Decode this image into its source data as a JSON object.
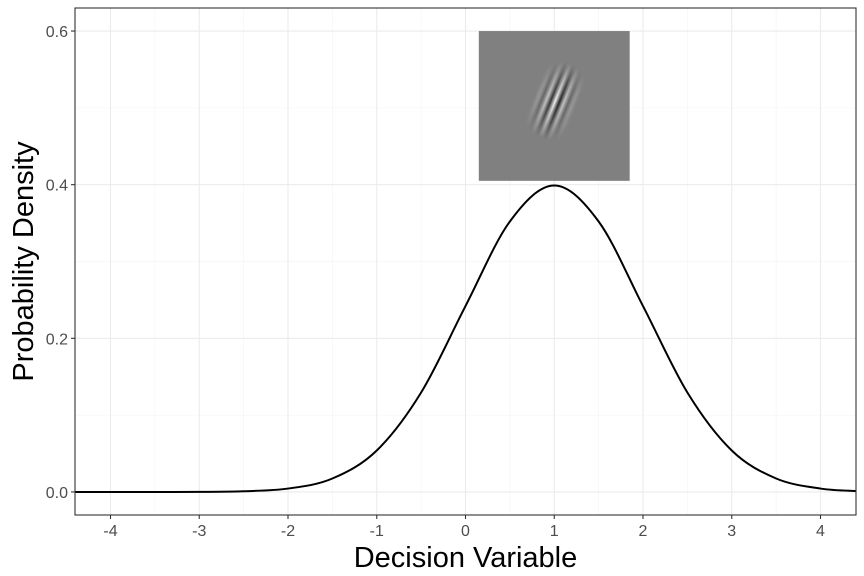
{
  "chart_data": {
    "type": "line",
    "title": "",
    "xlabel": "Decision Variable",
    "ylabel": "Probability Density",
    "xlim": [
      -4.4,
      4.4
    ],
    "ylim": [
      -0.03,
      0.63
    ],
    "x_ticks": [
      -4,
      -3,
      -2,
      -1,
      0,
      1,
      2,
      3,
      4
    ],
    "x_tick_labels": [
      "-4",
      "-3",
      "-2",
      "-1",
      "0",
      "1",
      "2",
      "3",
      "4"
    ],
    "y_ticks": [
      0.0,
      0.2,
      0.4,
      0.6
    ],
    "y_tick_labels": [
      "0.0",
      "0.2",
      "0.4",
      "0.6"
    ],
    "grid": true,
    "legend": "none",
    "series": [
      {
        "x": [
          -4.4,
          -4.0,
          -3.5,
          -3.0,
          -2.5,
          -2.0,
          -1.5,
          -1.0,
          -0.5,
          0.0,
          0.5,
          1.0,
          1.5,
          2.0,
          2.5,
          3.0,
          3.5,
          4.0,
          4.4
        ],
        "y": [
          0.0,
          0.0,
          0.0,
          0.0001,
          0.0009,
          0.0044,
          0.0175,
          0.054,
          0.1295,
          0.242,
          0.3521,
          0.3989,
          0.3521,
          0.242,
          0.1295,
          0.054,
          0.0175,
          0.0044,
          0.0012
        ],
        "color": "#000000"
      }
    ],
    "inset_image": {
      "description_icon": "gabor-patch-icon",
      "x_range": [
        0.15,
        1.85
      ],
      "y_range": [
        0.405,
        0.6
      ],
      "background": "#808080"
    }
  }
}
